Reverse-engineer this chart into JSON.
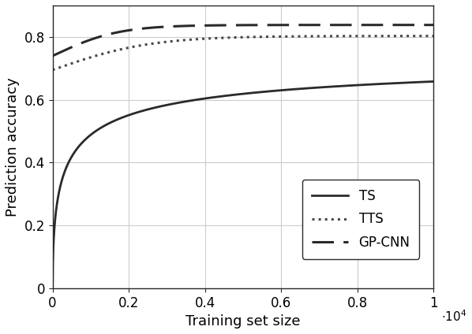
{
  "title": "",
  "xlabel": "Training set size",
  "ylabel": "Prediction accuracy",
  "xlim": [
    0,
    10000
  ],
  "ylim": [
    0,
    0.9
  ],
  "xtick_values": [
    0,
    2000,
    4000,
    6000,
    8000,
    10000
  ],
  "xtick_labels": [
    "0",
    "0.2",
    "0.4",
    "0.6",
    "0.8",
    "1"
  ],
  "ytick_values": [
    0,
    0.2,
    0.4,
    0.6,
    0.8
  ],
  "ytick_labels": [
    "0",
    "0.2",
    "0.4",
    "0.6",
    "0.8"
  ],
  "line_color": "#2a2a2a",
  "grid_color": "#cccccc",
  "background_color": "#ffffff",
  "legend_labels": [
    "TS",
    "TTS",
    "GP-CNN"
  ],
  "ts_style": {
    "linestyle": "-",
    "linewidth": 2.0,
    "color": "#2a2a2a"
  },
  "tts_style": {
    "linestyle": ":",
    "linewidth": 2.2,
    "color": "#4a4a4a"
  },
  "gpcnn_style": {
    "linewidth": 2.2,
    "color": "#2a2a2a",
    "dashes": [
      9,
      4
    ]
  }
}
